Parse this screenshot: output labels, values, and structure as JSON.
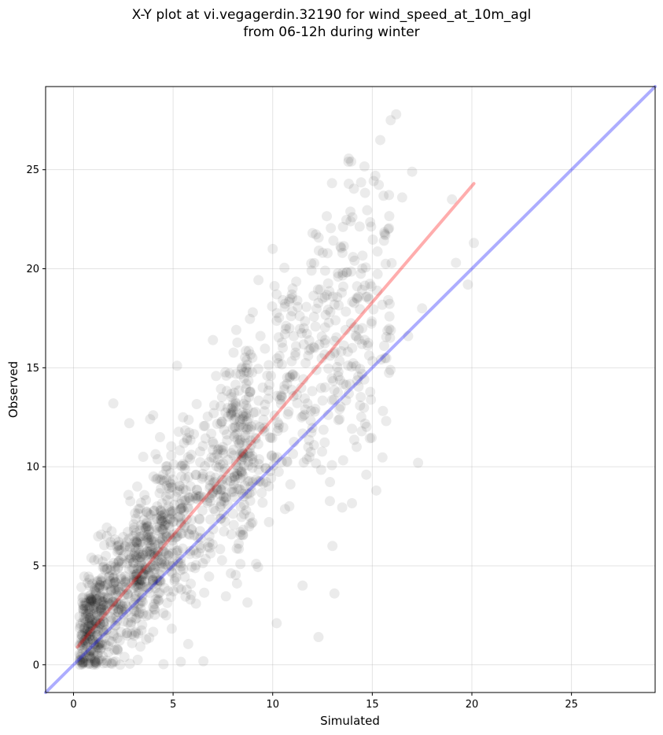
{
  "chart_data": {
    "type": "scatter",
    "title": "X-Y plot at vi.vegagerdin.32190 for wind_speed_at_10m_agl",
    "subtitle": "from 06-12h during winter",
    "xlabel": "Simulated",
    "ylabel": "Observed",
    "xlim": [
      -1.4,
      29.2
    ],
    "ylim": [
      -1.4,
      29.2
    ],
    "xticks": [
      0,
      5,
      10,
      15,
      20,
      25
    ],
    "yticks": [
      0,
      5,
      10,
      15,
      20,
      25
    ],
    "grid": true,
    "points": {
      "color": "#000000",
      "opacity": 0.08,
      "approx_count": 1500,
      "sample": [
        [
          0.3,
          1.0
        ],
        [
          0.5,
          2.8
        ],
        [
          0.8,
          4.0
        ],
        [
          1.0,
          3.0
        ],
        [
          1.2,
          1.5
        ],
        [
          1.5,
          3.8
        ],
        [
          1.8,
          4.5
        ],
        [
          2.0,
          13.2
        ],
        [
          2.5,
          5.5
        ],
        [
          2.8,
          12.2
        ],
        [
          3.0,
          6.5
        ],
        [
          3.2,
          9.0
        ],
        [
          3.5,
          10.5
        ],
        [
          4.0,
          12.6
        ],
        [
          4.2,
          8.0
        ],
        [
          4.5,
          6.0
        ],
        [
          5.2,
          15.1
        ],
        [
          5.5,
          12.5
        ],
        [
          6.0,
          8.5
        ],
        [
          6.5,
          9.5
        ],
        [
          7.0,
          16.4
        ],
        [
          7.5,
          11.0
        ],
        [
          8.0,
          13.0
        ],
        [
          8.5,
          10.5
        ],
        [
          9.0,
          17.8
        ],
        [
          9.5,
          14.0
        ],
        [
          10.0,
          21.0
        ],
        [
          10.2,
          2.1
        ],
        [
          11.0,
          19.0
        ],
        [
          11.5,
          4.0
        ],
        [
          12.0,
          21.8
        ],
        [
          12.3,
          1.4
        ],
        [
          12.5,
          18.5
        ],
        [
          13.0,
          6.0
        ],
        [
          13.1,
          3.6
        ],
        [
          13.5,
          20.8
        ],
        [
          14.0,
          22.6
        ],
        [
          14.5,
          17.0
        ],
        [
          14.7,
          9.6
        ],
        [
          15.2,
          8.8
        ],
        [
          15.4,
          26.5
        ],
        [
          15.8,
          22.0
        ],
        [
          16.2,
          27.8
        ],
        [
          16.5,
          23.6
        ],
        [
          16.8,
          16.6
        ],
        [
          17.0,
          24.9
        ],
        [
          17.3,
          10.2
        ],
        [
          17.5,
          18.0
        ],
        [
          19.0,
          23.5
        ],
        [
          19.2,
          20.3
        ],
        [
          19.8,
          19.2
        ],
        [
          20.1,
          21.3
        ]
      ]
    },
    "lines": [
      {
        "color": "#ff0000",
        "opacity": 0.32,
        "x": [
          0.2,
          20.1
        ],
        "y": [
          0.9,
          24.3
        ]
      },
      {
        "color": "#0000ff",
        "opacity": 0.32,
        "x": [
          -1.4,
          29.2
        ],
        "y": [
          -1.4,
          29.2
        ]
      }
    ]
  }
}
